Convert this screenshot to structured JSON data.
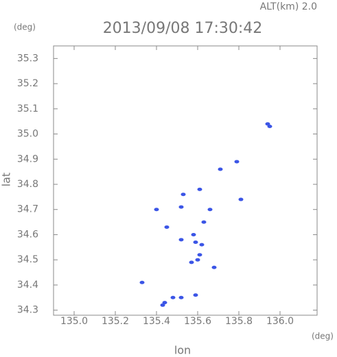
{
  "chart_data": {
    "type": "scatter",
    "title": "2013/09/08 17:30:42",
    "subtitle": "ALT(km) 2.0",
    "xlabel": "lon",
    "ylabel": "lat",
    "x_unit": "(deg)",
    "y_unit": "(deg)",
    "color": "#3b55e6",
    "x": [
      135.94,
      135.95,
      135.79,
      135.81,
      135.61,
      135.53,
      135.4,
      135.45,
      135.52,
      135.63,
      135.66,
      135.58,
      135.62,
      135.59,
      135.61,
      135.6,
      135.57,
      135.68,
      135.52,
      135.33,
      135.44,
      135.48,
      135.52,
      135.59,
      135.43,
      135.71
    ],
    "values": [
      35.04,
      35.03,
      34.89,
      34.74,
      34.78,
      34.76,
      34.7,
      34.63,
      34.71,
      34.65,
      34.7,
      34.6,
      34.56,
      34.57,
      34.52,
      34.5,
      34.49,
      34.47,
      34.58,
      34.41,
      34.33,
      34.35,
      34.35,
      34.36,
      34.32,
      34.86
    ],
    "xlim": [
      134.9,
      136.18
    ],
    "ylim": [
      34.28,
      35.35
    ],
    "xticks": [
      {
        "value": 135,
        "label": "135.0"
      },
      135.2,
      135.4,
      135.6,
      135.8,
      {
        "value": 136,
        "label": "136.0"
      }
    ],
    "yticks": [
      35.3,
      35.2,
      35.1,
      {
        "value": 35,
        "label": "35.0"
      },
      34.9,
      34.8,
      34.7,
      34.6,
      34.5,
      34.4,
      34.3
    ]
  }
}
